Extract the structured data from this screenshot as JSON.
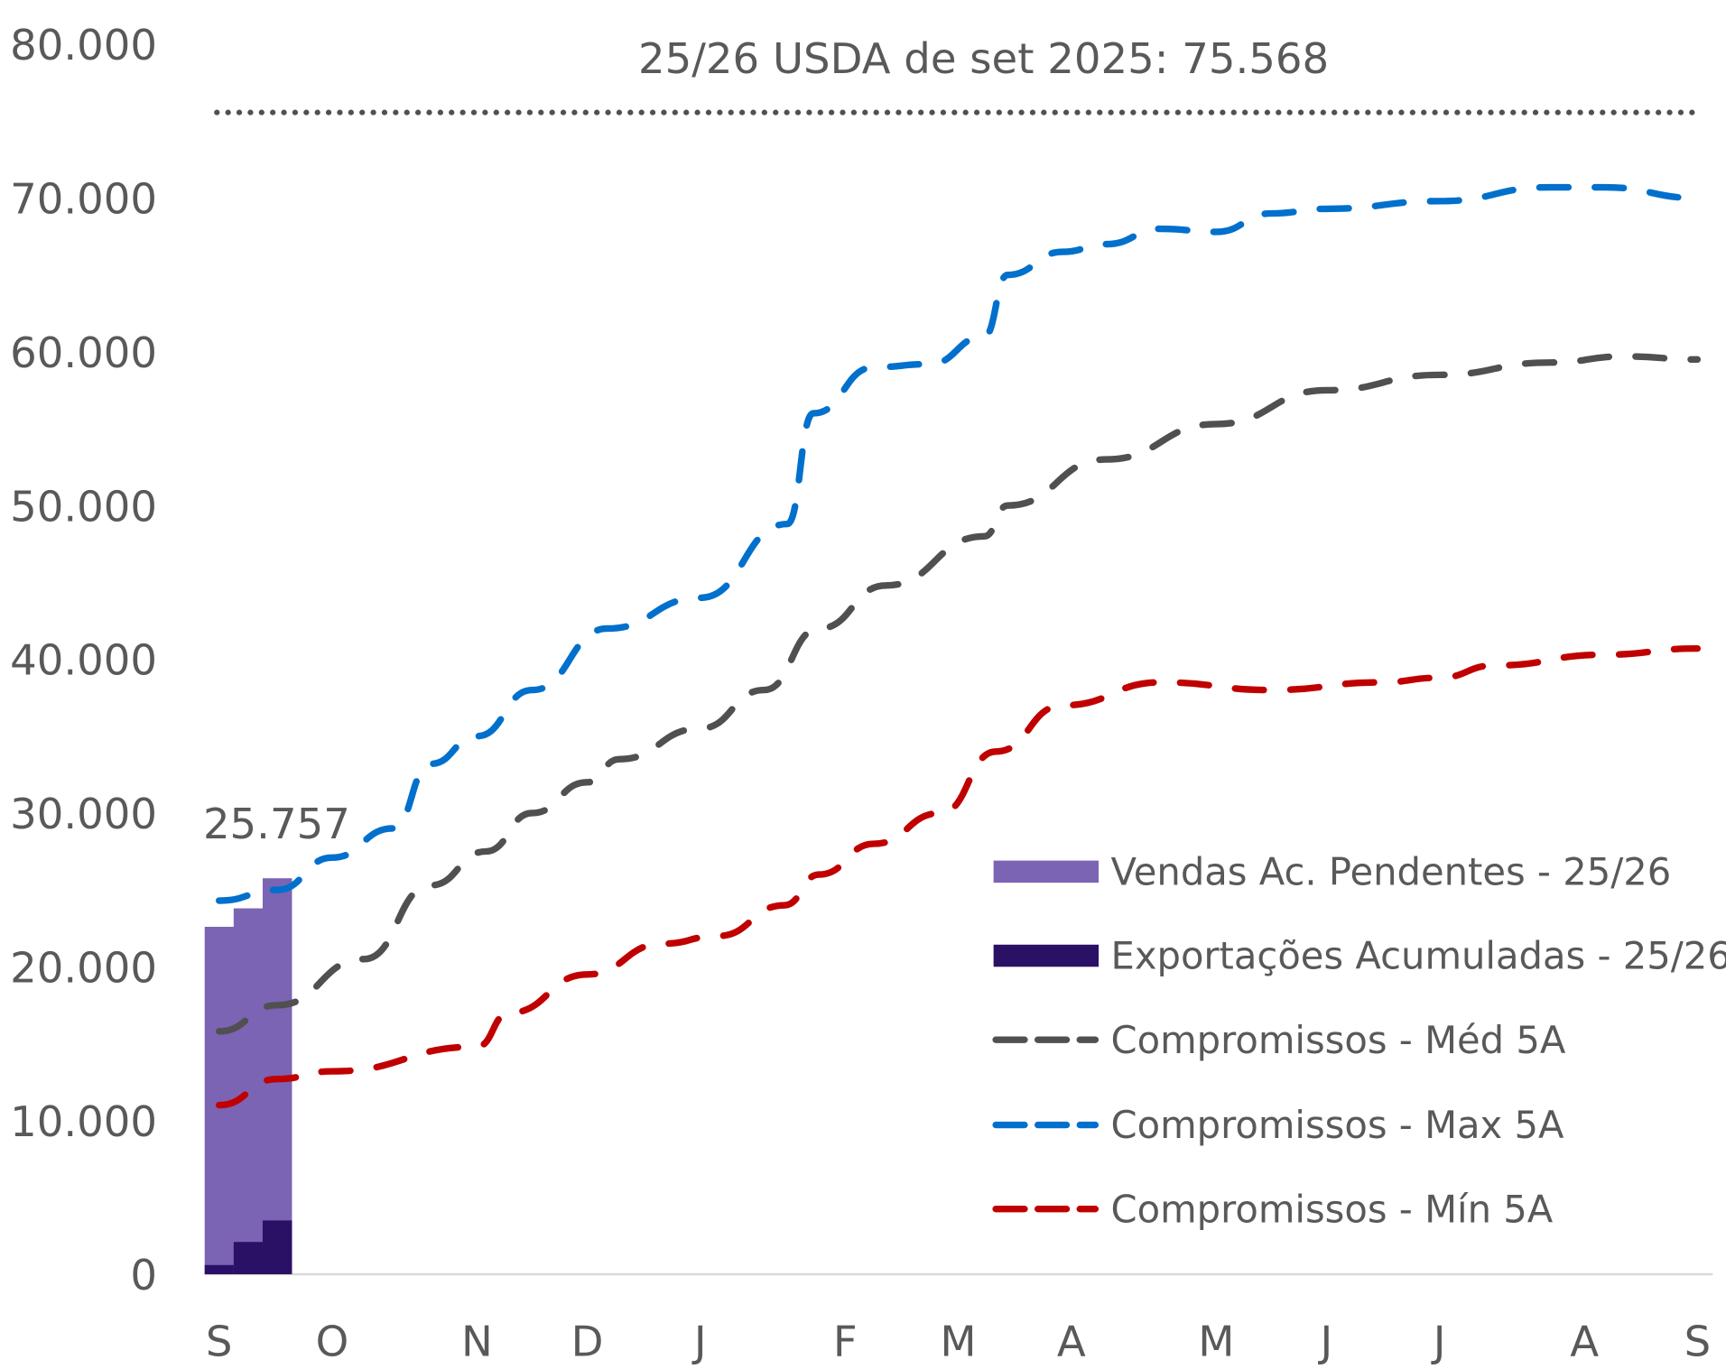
{
  "chart_data": {
    "type": "bar+line",
    "title": "",
    "annotation": "25/26 USDA de set 2025: 75.568",
    "reference_value": 75568,
    "data_label": "25.757",
    "ylim": [
      0,
      80000
    ],
    "yticks": [
      "0",
      "10.000",
      "20.000",
      "30.000",
      "40.000",
      "50.000",
      "60.000",
      "70.000",
      "80.000"
    ],
    "x_ticks": [
      {
        "label": "S",
        "week": 0
      },
      {
        "label": "O",
        "week": 3.9
      },
      {
        "label": "N",
        "week": 8.9
      },
      {
        "label": "D",
        "week": 12.7
      },
      {
        "label": "J",
        "week": 16.6
      },
      {
        "label": "F",
        "week": 21.6
      },
      {
        "label": "M",
        "week": 25.5
      },
      {
        "label": "A",
        "week": 29.4
      },
      {
        "label": "M",
        "week": 34.4
      },
      {
        "label": "J",
        "week": 38.2
      },
      {
        "label": "J",
        "week": 42.1
      },
      {
        "label": "A",
        "week": 47.1
      },
      {
        "label": "S",
        "week": 51
      }
    ],
    "bars": {
      "weeks": [
        0,
        1,
        2
      ],
      "series": [
        {
          "name": "Vendas Ac. Pendentes - 25/26",
          "color": "#7B64B4",
          "totals": [
            22600,
            23800,
            25757
          ]
        },
        {
          "name": "Exportações Acumuladas - 25/26",
          "color": "#2A1165",
          "values": [
            600,
            2100,
            3500
          ]
        }
      ]
    },
    "lines": [
      {
        "name": "Compromissos - Méd 5A",
        "color": "#505050",
        "points": [
          [
            0,
            15800
          ],
          [
            2,
            17500
          ],
          [
            5,
            20500
          ],
          [
            7.3,
            25300
          ],
          [
            9.2,
            27500
          ],
          [
            10.8,
            30000
          ],
          [
            12.7,
            32000
          ],
          [
            13.8,
            33500
          ],
          [
            16.6,
            35500
          ],
          [
            18.8,
            38000
          ],
          [
            20.7,
            42000
          ],
          [
            23,
            44800
          ],
          [
            26.4,
            48000
          ],
          [
            27.2,
            50000
          ],
          [
            30.6,
            53000
          ],
          [
            34.4,
            55300
          ],
          [
            38.2,
            57500
          ],
          [
            42.1,
            58500
          ],
          [
            45.9,
            59300
          ],
          [
            48.5,
            59700
          ],
          [
            51,
            59500
          ]
        ]
      },
      {
        "name": "Compromissos - Max 5A",
        "color": "#0070CC",
        "points": [
          [
            0,
            24300
          ],
          [
            2,
            25000
          ],
          [
            3.9,
            27100
          ],
          [
            6,
            29000
          ],
          [
            7.3,
            33200
          ],
          [
            8.9,
            35000
          ],
          [
            10.8,
            38000
          ],
          [
            13.4,
            42000
          ],
          [
            16.6,
            44000
          ],
          [
            19.6,
            48800
          ],
          [
            20.5,
            56000
          ],
          [
            22.6,
            59000
          ],
          [
            24.5,
            59200
          ],
          [
            26.4,
            61000
          ],
          [
            27.2,
            65000
          ],
          [
            29.1,
            66500
          ],
          [
            30.6,
            67000
          ],
          [
            32.5,
            68000
          ],
          [
            34.4,
            67800
          ],
          [
            36.3,
            69000
          ],
          [
            38.2,
            69300
          ],
          [
            42.1,
            69800
          ],
          [
            45.9,
            70700
          ],
          [
            47.8,
            70700
          ],
          [
            51,
            70000
          ]
        ]
      },
      {
        "name": "Compromissos - Mín 5A",
        "color": "#C00000",
        "points": [
          [
            0,
            11000
          ],
          [
            2,
            12700
          ],
          [
            3.9,
            13200
          ],
          [
            8.9,
            14800
          ],
          [
            10,
            17000
          ],
          [
            12.7,
            19500
          ],
          [
            15.3,
            21500
          ],
          [
            17.2,
            22000
          ],
          [
            19.5,
            24000
          ],
          [
            20.7,
            26000
          ],
          [
            22.6,
            28000
          ],
          [
            24.9,
            30000
          ],
          [
            26.8,
            34000
          ],
          [
            29.1,
            37000
          ],
          [
            32.5,
            38500
          ],
          [
            36.3,
            38000
          ],
          [
            40.1,
            38500
          ],
          [
            42.1,
            38800
          ],
          [
            44,
            39600
          ],
          [
            47.8,
            40300
          ],
          [
            51,
            40700
          ]
        ]
      }
    ],
    "legend_placement": "bottom-right"
  }
}
